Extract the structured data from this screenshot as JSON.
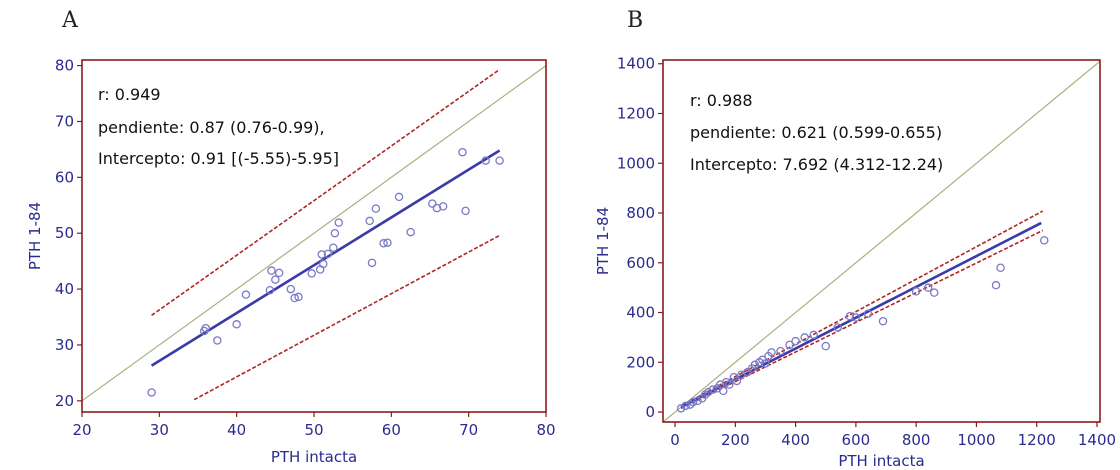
{
  "chart_data": [
    {
      "type": "scatter",
      "panel": "A",
      "xlabel": "PTH intacta",
      "ylabel": "PTH 1-84",
      "xlim": [
        20,
        80
      ],
      "ylim": [
        18,
        81
      ],
      "xticks": [
        20,
        30,
        40,
        50,
        60,
        70,
        80
      ],
      "yticks": [
        20,
        30,
        40,
        50,
        60,
        70,
        80
      ],
      "grid": false,
      "annotations": [
        "r: 0.949",
        "pendiente: 0.87 (0.76-0.99),",
        "Intercepto: 0.91 [(-5.55)-5.95]"
      ],
      "points": [
        [
          29.0,
          21.5
        ],
        [
          35.8,
          32.5
        ],
        [
          36.0,
          33.0
        ],
        [
          37.5,
          30.8
        ],
        [
          40.0,
          33.7
        ],
        [
          41.2,
          39.0
        ],
        [
          44.3,
          39.8
        ],
        [
          44.5,
          43.3
        ],
        [
          45.0,
          41.7
        ],
        [
          45.5,
          42.9
        ],
        [
          47.0,
          40.0
        ],
        [
          47.5,
          38.4
        ],
        [
          48.0,
          38.6
        ],
        [
          49.7,
          42.8
        ],
        [
          50.8,
          43.5
        ],
        [
          51.0,
          46.2
        ],
        [
          51.2,
          44.5
        ],
        [
          51.8,
          46.3
        ],
        [
          52.5,
          47.4
        ],
        [
          52.7,
          50.0
        ],
        [
          53.2,
          51.9
        ],
        [
          57.2,
          52.2
        ],
        [
          57.5,
          44.7
        ],
        [
          58.0,
          54.4
        ],
        [
          59.0,
          48.2
        ],
        [
          59.5,
          48.3
        ],
        [
          62.5,
          50.2
        ],
        [
          61.0,
          56.5
        ],
        [
          65.3,
          55.3
        ],
        [
          65.9,
          54.5
        ],
        [
          66.7,
          54.8
        ],
        [
          69.2,
          64.5
        ],
        [
          69.6,
          54.0
        ],
        [
          72.2,
          63.0
        ],
        [
          74.0,
          63.0
        ]
      ],
      "regression_line": [
        [
          29,
          26.3
        ],
        [
          74,
          64.8
        ]
      ],
      "ci_upper": [
        [
          29,
          35.3
        ],
        [
          74,
          79.3
        ]
      ],
      "ci_lower": [
        [
          34.5,
          20.2
        ],
        [
          74,
          49.6
        ]
      ],
      "identity_line": [
        [
          20,
          20
        ],
        [
          80,
          80
        ]
      ],
      "colors": {
        "points": "#7a7ac8",
        "regression": "#3a3aa8",
        "ci": "#b02424",
        "identity": "#a8b080",
        "frame": "#8b1a1a"
      }
    },
    {
      "type": "scatter",
      "panel": "B",
      "xlabel": "PTH intacta",
      "ylabel": "PTH 1-84",
      "xlim": [
        -40,
        1410
      ],
      "ylim": [
        -40,
        1415
      ],
      "xticks": [
        0,
        200,
        400,
        600,
        800,
        1000,
        1200,
        1400
      ],
      "yticks": [
        0,
        200,
        400,
        600,
        800,
        1000,
        1200,
        1400
      ],
      "grid": false,
      "annotations": [
        "r: 0.988",
        "pendiente: 0.621 (0.599-0.655)",
        "Intercepto: 7.692 (4.312-12.24)"
      ],
      "points": [
        [
          20,
          15
        ],
        [
          35,
          25
        ],
        [
          50,
          30
        ],
        [
          60,
          40
        ],
        [
          75,
          45
        ],
        [
          90,
          55
        ],
        [
          100,
          70
        ],
        [
          110,
          80
        ],
        [
          125,
          90
        ],
        [
          140,
          95
        ],
        [
          150,
          110
        ],
        [
          160,
          85
        ],
        [
          170,
          120
        ],
        [
          180,
          110
        ],
        [
          195,
          140
        ],
        [
          205,
          125
        ],
        [
          220,
          150
        ],
        [
          240,
          160
        ],
        [
          255,
          175
        ],
        [
          265,
          190
        ],
        [
          280,
          200
        ],
        [
          290,
          210
        ],
        [
          300,
          195
        ],
        [
          310,
          225
        ],
        [
          320,
          240
        ],
        [
          350,
          245
        ],
        [
          380,
          270
        ],
        [
          400,
          285
        ],
        [
          430,
          300
        ],
        [
          460,
          310
        ],
        [
          500,
          265
        ],
        [
          540,
          340
        ],
        [
          580,
          385
        ],
        [
          600,
          380
        ],
        [
          640,
          395
        ],
        [
          690,
          365
        ],
        [
          800,
          485
        ],
        [
          840,
          500
        ],
        [
          860,
          480
        ],
        [
          1065,
          510
        ],
        [
          1080,
          580
        ],
        [
          1225,
          690
        ]
      ],
      "regression_line": [
        [
          20,
          20
        ],
        [
          1215,
          760
        ]
      ],
      "ci_upper": [
        [
          20,
          25
        ],
        [
          1220,
          808
        ]
      ],
      "ci_lower": [
        [
          20,
          15
        ],
        [
          1220,
          730
        ]
      ],
      "identity_line": [
        [
          -40,
          -40
        ],
        [
          1410,
          1410
        ]
      ],
      "colors": {
        "points": "#7a7ac8",
        "regression": "#3a3aa8",
        "ci": "#b02424",
        "identity": "#a8b080",
        "frame": "#8b1a1a"
      }
    }
  ]
}
